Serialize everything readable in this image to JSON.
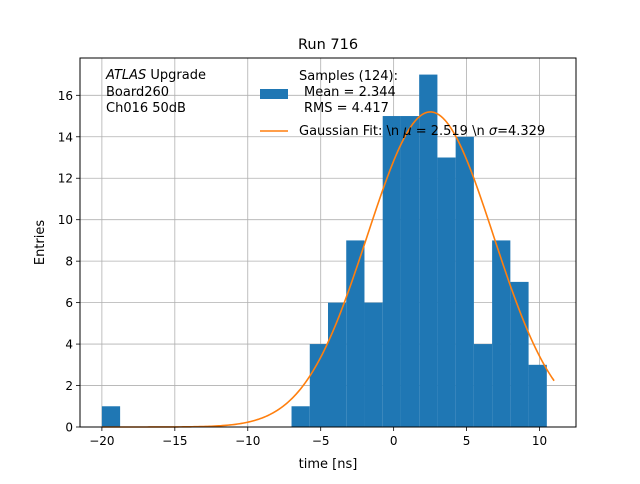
{
  "chart_data": {
    "type": "bar",
    "title": "Run 716",
    "xlabel": "time [ns]",
    "ylabel": "Entries",
    "xlim": [
      -21.5,
      12.5
    ],
    "ylim": [
      0,
      17.8
    ],
    "xticks": [
      -20,
      -15,
      -10,
      -5,
      0,
      5,
      10
    ],
    "yticks": [
      0,
      2,
      4,
      6,
      8,
      10,
      12,
      14,
      16
    ],
    "grid": true,
    "annotation": {
      "lines": [
        "ATLAS Upgrade",
        "Board260",
        "Ch016 50dB"
      ],
      "italic_word": "ATLAS"
    },
    "legend": {
      "placement": "top-right",
      "entries": [
        {
          "label_lines": [
            "Samples (124):",
            "Mean = 2.344",
            "RMS = 4.417"
          ],
          "kind": "patch",
          "color": "#1f77b4"
        },
        {
          "label_lines": [
            "Gaussian Fit: \\n μ = 2.519 \\n σ=4.329"
          ],
          "kind": "line",
          "color": "#ff7f0e"
        }
      ]
    },
    "histogram": {
      "name": "Samples (124):",
      "color": "#1f77b4",
      "bins": [
        {
          "x0": -20.0,
          "x1": -18.75,
          "count": 1
        },
        {
          "x0": -7.0,
          "x1": -5.75,
          "count": 1
        },
        {
          "x0": -5.75,
          "x1": -4.5,
          "count": 4
        },
        {
          "x0": -4.5,
          "x1": -3.25,
          "count": 6
        },
        {
          "x0": -3.25,
          "x1": -2.0,
          "count": 9
        },
        {
          "x0": -2.0,
          "x1": -0.75,
          "count": 6
        },
        {
          "x0": -0.75,
          "x1": 0.5,
          "count": 15
        },
        {
          "x0": 0.5,
          "x1": 1.75,
          "count": 15
        },
        {
          "x0": 1.75,
          "x1": 3.0,
          "count": 17
        },
        {
          "x0": 3.0,
          "x1": 4.25,
          "count": 13
        },
        {
          "x0": 4.25,
          "x1": 5.5,
          "count": 14
        },
        {
          "x0": 5.5,
          "x1": 6.75,
          "count": 4
        },
        {
          "x0": 6.75,
          "x1": 8.0,
          "count": 9
        },
        {
          "x0": 8.0,
          "x1": 9.25,
          "count": 7
        },
        {
          "x0": 9.25,
          "x1": 10.5,
          "count": 3
        }
      ]
    },
    "fit": {
      "name": "Gaussian Fit",
      "color": "#ff7f0e",
      "amplitude": 15.2,
      "mu": 2.519,
      "sigma": 4.329,
      "x_range": [
        -20.0,
        11.0
      ]
    }
  }
}
